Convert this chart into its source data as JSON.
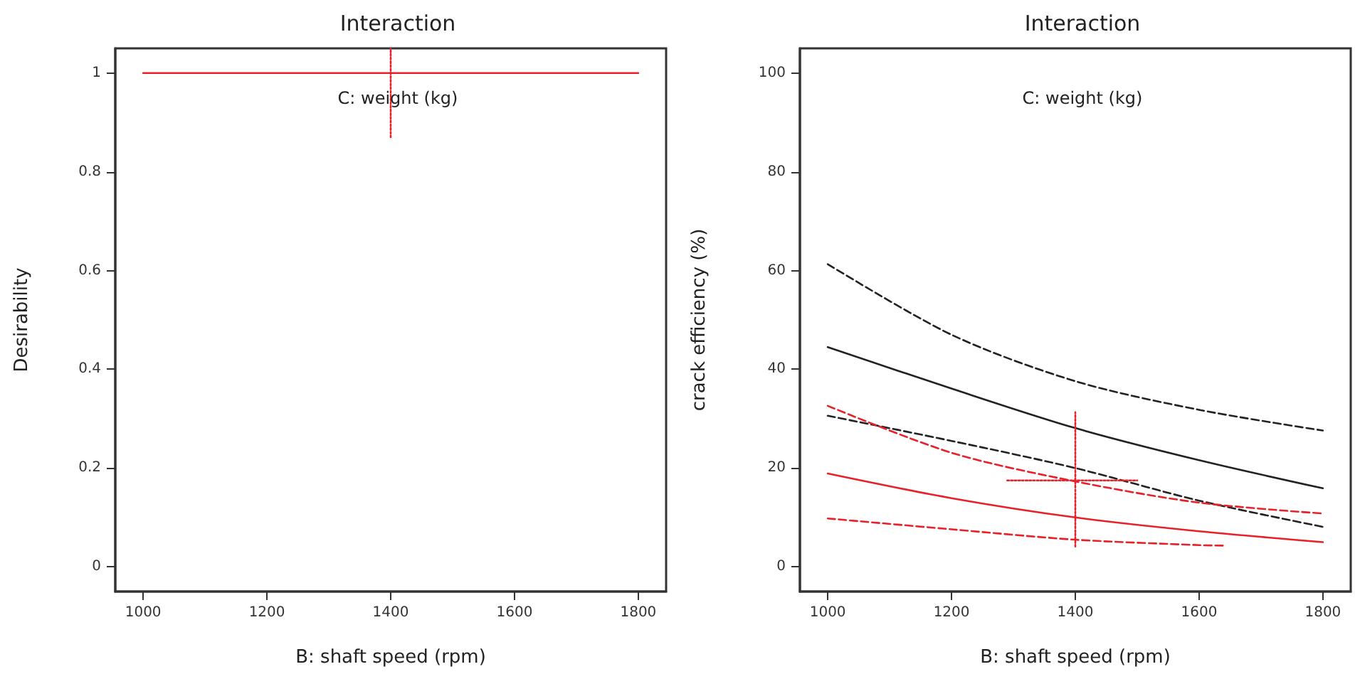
{
  "chart_data": [
    {
      "type": "line",
      "title": "Interaction",
      "subtitle": "C: weight (kg)",
      "xlabel": "B: shaft speed (rpm)",
      "ylabel": "Desirability",
      "x": [
        1000,
        1800
      ],
      "series": [
        {
          "color": "#e8202a",
          "values": [
            1,
            1
          ],
          "line_style": "solid"
        },
        {
          "color": "#e8202a",
          "x": [
            1400,
            1400
          ],
          "values": [
            0.87,
            1.05
          ],
          "line_style": "dotted"
        }
      ],
      "xlim": [
        955,
        1845
      ],
      "xticks": [
        1000,
        1200,
        1400,
        1600,
        1800
      ],
      "ylim": [
        -0.05,
        1.05
      ],
      "yticks": [
        0,
        0.2,
        0.4,
        0.6,
        0.8,
        1
      ],
      "grid": false
    },
    {
      "type": "line",
      "title": "Interaction",
      "subtitle": "C: weight (kg)",
      "xlabel": "B: shaft speed (rpm)",
      "ylabel": "crack efficiency (%)",
      "x": [
        1000,
        1200,
        1400,
        1600,
        1800
      ],
      "series": [
        {
          "color": "#222222",
          "values": [
            61.3,
            47,
            37.6,
            31.8,
            27.6
          ],
          "line_style": "dashed"
        },
        {
          "color": "#222222",
          "values": [
            44.5,
            36.1,
            28.1,
            21.6,
            15.9
          ],
          "line_style": "solid"
        },
        {
          "color": "#222222",
          "values": [
            30.6,
            25.5,
            20,
            13.4,
            8.1
          ],
          "line_style": "dashed"
        },
        {
          "color": "#e8202a",
          "values": [
            32.6,
            23.1,
            17.3,
            13,
            10.8
          ],
          "line_style": "dashed"
        },
        {
          "color": "#e8202a",
          "values": [
            18.9,
            13.9,
            10,
            7.2,
            5
          ],
          "line_style": "solid"
        },
        {
          "color": "#e8202a",
          "x": [
            1000,
            1200,
            1400,
            1600,
            1640
          ],
          "values": [
            9.8,
            7.6,
            5.5,
            4.4,
            4.3
          ],
          "line_style": "dashed"
        },
        {
          "color": "#e8202a",
          "x": [
            1400,
            1400
          ],
          "values": [
            4.1,
            31.3
          ],
          "line_style": "dotted"
        },
        {
          "color": "#e8202a",
          "x": [
            1290,
            1500
          ],
          "values": [
            17.5,
            17.5
          ],
          "line_style": "dotted"
        }
      ],
      "xlim": [
        955,
        1845
      ],
      "xticks": [
        1000,
        1200,
        1400,
        1600,
        1800
      ],
      "ylim": [
        -5,
        105
      ],
      "yticks": [
        0,
        20,
        40,
        60,
        80,
        100
      ],
      "grid": false
    }
  ]
}
